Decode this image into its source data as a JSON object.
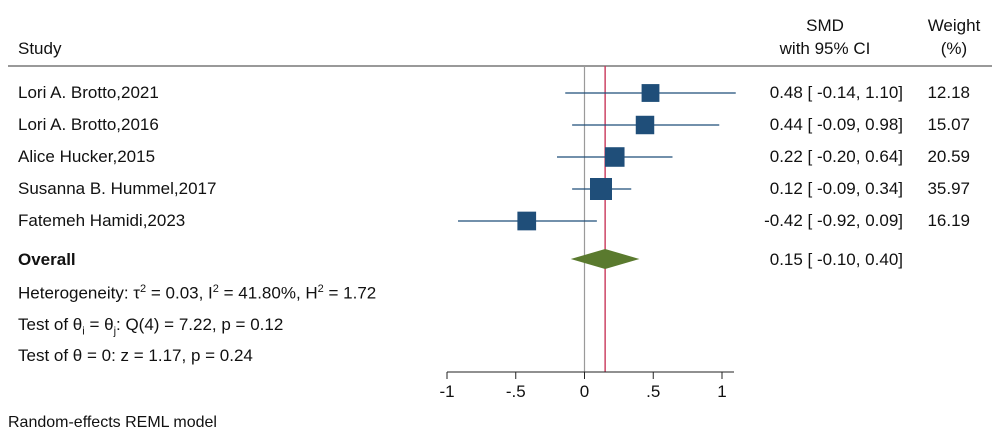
{
  "chart_data": {
    "type": "forest",
    "header": {
      "study": "Study",
      "effect_line1": "SMD",
      "effect_line2": "with 95% CI",
      "weight_line1": "Weight",
      "weight_line2": "(%)"
    },
    "studies": [
      {
        "label": "Lori A. Brotto,2021",
        "smd": 0.48,
        "lo": -0.14,
        "hi": 1.1,
        "ci_text": "0.48 [ -0.14,  1.10]",
        "weight": 12.18,
        "weight_text": "12.18"
      },
      {
        "label": "Lori A. Brotto,2016",
        "smd": 0.44,
        "lo": -0.09,
        "hi": 0.98,
        "ci_text": "0.44 [ -0.09,  0.98]",
        "weight": 15.07,
        "weight_text": "15.07"
      },
      {
        "label": "Alice Hucker,2015",
        "smd": 0.22,
        "lo": -0.2,
        "hi": 0.64,
        "ci_text": "0.22 [ -0.20,  0.64]",
        "weight": 20.59,
        "weight_text": "20.59"
      },
      {
        "label": "Susanna B. Hummel,2017",
        "smd": 0.12,
        "lo": -0.09,
        "hi": 0.34,
        "ci_text": "0.12 [ -0.09,  0.34]",
        "weight": 35.97,
        "weight_text": "35.97"
      },
      {
        "label": "Fatemeh Hamidi,2023",
        "smd": -0.42,
        "lo": -0.92,
        "hi": 0.09,
        "ci_text": "-0.42 [ -0.92,  0.09]",
        "weight": 16.19,
        "weight_text": "16.19"
      }
    ],
    "overall": {
      "label": "Overall",
      "smd": 0.15,
      "lo": -0.1,
      "hi": 0.4,
      "ci_text": "0.15 [ -0.10,  0.40]"
    },
    "heterogeneity": {
      "prefix": "Heterogeneity: τ",
      "tau_sup": "2",
      "part2": " = 0.03, I",
      "i_sup": "2",
      "part3": " = 41.80%, H",
      "h_sup": "2",
      "part4": " = 1.72"
    },
    "test_equal": {
      "prefix": "Test of θ",
      "sub_i": "i",
      "mid": " = θ",
      "sub_j": "j",
      "suffix": ": Q(4) = 7.22, p = 0.12"
    },
    "test_zero": "Test of θ = 0: z = 1.17, p = 0.24",
    "x_axis": {
      "ticks": [
        -1,
        -0.5,
        0,
        0.5,
        1
      ],
      "tick_labels": [
        "-1",
        "-.5",
        "0",
        ".5",
        "1"
      ],
      "range": [
        -1,
        1
      ]
    },
    "null_line": 0,
    "colors": {
      "marker": "#1f4e79",
      "ci_line": "#1f4e79",
      "diamond": "#5a7a2e",
      "overall_line": "#c8375a",
      "null_line": "#9a9a9a",
      "axis": "#222222"
    },
    "footnote": "Random-effects REML model"
  }
}
